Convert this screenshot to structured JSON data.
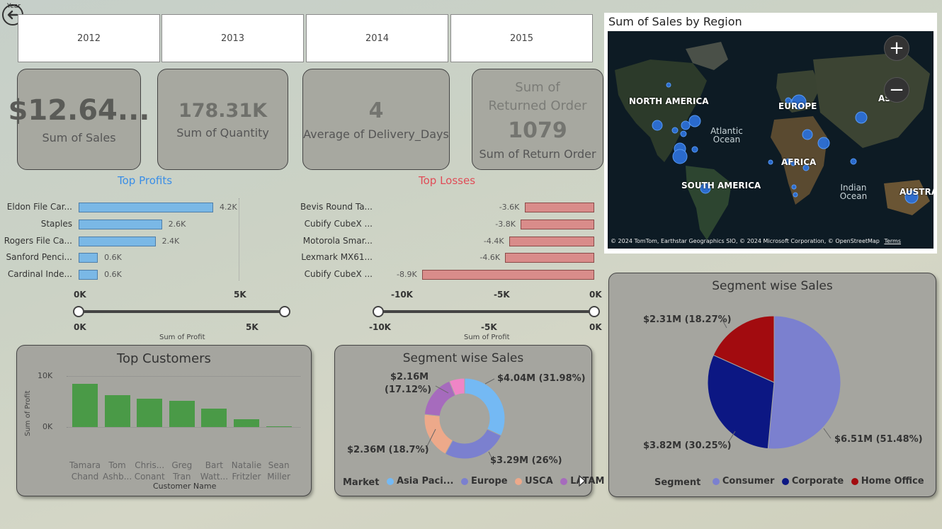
{
  "slicer": {
    "label": "Year",
    "years": [
      "2012",
      "2013",
      "2014",
      "2015"
    ]
  },
  "kpis": [
    {
      "value": "$12.64...",
      "label": "Sum of Sales"
    },
    {
      "value": "178.31K",
      "label": "Sum of Quantity"
    },
    {
      "value": "4",
      "label": "Average of Delivery_Days"
    },
    {
      "header": "Sum of Returned Order",
      "value": "1079",
      "label": "Sum of Return Order"
    }
  ],
  "top_profits": {
    "title": "Top Profits",
    "title_color": "#3a8ee6",
    "bar_color": "#7ab8e6",
    "items": [
      {
        "label": "Eldon File Car...",
        "value": 4.2,
        "display": "4.2K"
      },
      {
        "label": "Staples",
        "value": 2.6,
        "display": "2.6K"
      },
      {
        "label": "Rogers File Ca...",
        "value": 2.4,
        "display": "2.4K"
      },
      {
        "label": "Sanford Penci...",
        "value": 0.6,
        "display": "0.6K"
      },
      {
        "label": "Cardinal Inde...",
        "value": 0.6,
        "display": "0.6K"
      }
    ],
    "axis_min": "0K",
    "axis_max": "5K",
    "slider_min": "0K",
    "slider_max": "5K",
    "slider_label": "Sum of Profit"
  },
  "top_losses": {
    "title": "Top Losses",
    "title_color": "#e04c57",
    "bar_color": "#d98c8a",
    "items": [
      {
        "label": "Bevis Round Ta...",
        "value": -3.6,
        "display": "-3.6K"
      },
      {
        "label": "Cubify CubeX ...",
        "value": -3.8,
        "display": "-3.8K"
      },
      {
        "label": "Motorola Smar...",
        "value": -4.4,
        "display": "-4.4K"
      },
      {
        "label": "Lexmark MX61...",
        "value": -4.6,
        "display": "-4.6K"
      },
      {
        "label": "Cubify CubeX ...",
        "value": -8.9,
        "display": "-8.9K"
      }
    ],
    "axis_ticks": [
      "-10K",
      "-5K",
      "0K"
    ],
    "slider_ticks": [
      "-10K",
      "-5K",
      "0K"
    ],
    "slider_label": "Sum of Profit"
  },
  "top_customers": {
    "title": "Top Customers",
    "ylabel": "Sum of Profit",
    "xlabel": "Customer Name",
    "y_ticks": [
      "10K",
      "0K"
    ],
    "bar_color": "#4a9a47",
    "customers": [
      {
        "name1": "Tamara",
        "name2": "Chand",
        "value": 8.7
      },
      {
        "name1": "Tom",
        "name2": "Ashb...",
        "value": 6.4
      },
      {
        "name1": "Chris...",
        "name2": "Conant",
        "value": 5.7
      },
      {
        "name1": "Greg",
        "name2": "Tran",
        "value": 5.3
      },
      {
        "name1": "Bart",
        "name2": "Watt...",
        "value": 3.7
      },
      {
        "name1": "Natalie",
        "name2": "Fritzler",
        "value": 1.6
      },
      {
        "name1": "Sean",
        "name2": "Miller",
        "value": 0.2
      }
    ]
  },
  "segment_donut": {
    "title": "Segment wise Sales",
    "legend_title": "Market",
    "slices": [
      {
        "name": "Asia Paci...",
        "pct": 31.98,
        "label": "$4.04M (31.98%)",
        "color": "#74b9f4"
      },
      {
        "name": "Europe",
        "pct": 26.0,
        "label": "$3.29M (26%)",
        "color": "#7b80cf"
      },
      {
        "name": "USCA",
        "pct": 18.7,
        "label": "$2.36M (18.7%)",
        "color": "#eda98a"
      },
      {
        "name": "LATAM",
        "pct": 17.12,
        "label_line1": "$2.16M",
        "label_line2": "(17.12%)",
        "color": "#a66bbd"
      },
      {
        "name": "",
        "pct": 6.2,
        "color": "#ef85c6"
      }
    ]
  },
  "segment_pie": {
    "title": "Segment wise Sales",
    "legend_title": "Segment",
    "slices": [
      {
        "name": "Consumer",
        "pct": 51.48,
        "label": "$6.51M (51.48%)",
        "color": "#7b80cf"
      },
      {
        "name": "Corporate",
        "pct": 30.25,
        "label": "$3.82M (30.25%)",
        "color": "#0c1783"
      },
      {
        "name": "Home Office",
        "pct": 18.27,
        "label": "$2.31M (18.27%)",
        "color": "#a20b0f"
      }
    ]
  },
  "map": {
    "title": "Sum of Sales by Region",
    "labels": {
      "north_america": "NORTH AMERICA",
      "europe": "EUROPE",
      "asia": "ASIA",
      "africa": "AFRICA",
      "south_america": "SOUTH AMERICA",
      "australia": "AUSTRALI",
      "atlantic": "Atlantic Ocean",
      "indian": "Indian Ocean"
    },
    "attribution": "© 2024 TomTom, Earthstar Geographics SIO, © 2024 Microsoft Corporation, © OpenStreetMap",
    "terms": "Terms",
    "zoom_in": "+",
    "zoom_out": "−"
  }
}
